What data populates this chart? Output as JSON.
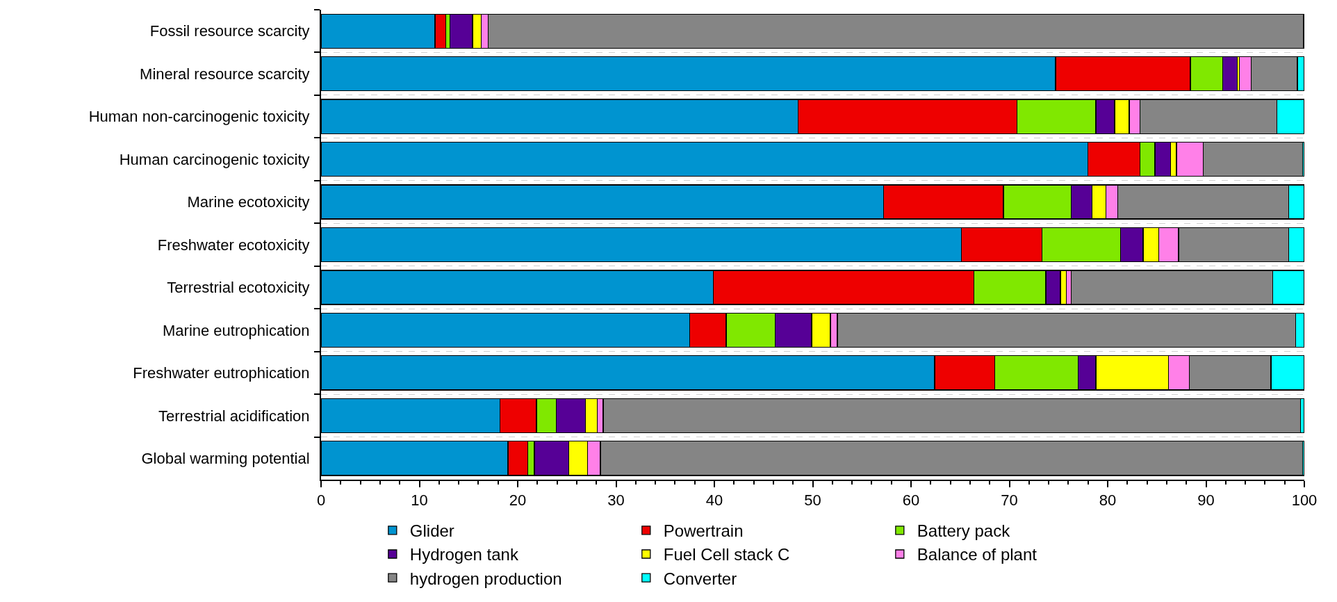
{
  "chart_data": {
    "type": "bar",
    "orientation": "horizontal",
    "stacked": true,
    "categories": [
      "Fossil resource scarcity",
      "Mineral resource scarcity",
      "Human non-carcinogenic toxicity",
      "Human carcinogenic toxicity",
      "Marine ecotoxicity",
      "Freshwater ecotoxicity",
      "Terrestrial ecotoxicity",
      "Marine eutrophication",
      "Freshwater eutrophication",
      "Terrestrial acidification",
      "Global warming potential"
    ],
    "series": [
      {
        "name": "Glider",
        "color": "#0094d0",
        "values": [
          11.6,
          74.7,
          48.5,
          78.0,
          57.2,
          65.1,
          39.9,
          37.5,
          62.4,
          18.2,
          19.0
        ]
      },
      {
        "name": "Powertrain",
        "color": "#ee0000",
        "values": [
          1.1,
          13.7,
          22.3,
          5.3,
          12.2,
          8.2,
          26.5,
          3.7,
          6.1,
          3.7,
          2.0
        ]
      },
      {
        "name": "Battery pack",
        "color": "#80e800",
        "values": [
          0.4,
          3.3,
          8.0,
          1.5,
          6.9,
          8.0,
          7.3,
          5.0,
          8.5,
          2.0,
          0.7
        ]
      },
      {
        "name": "Hydrogen tank",
        "color": "#560096",
        "values": [
          2.3,
          1.5,
          1.9,
          1.6,
          2.1,
          2.3,
          1.5,
          3.7,
          1.8,
          3.0,
          3.5
        ]
      },
      {
        "name": "Fuel Cell stack C",
        "color": "#ffff00",
        "values": [
          0.9,
          0.2,
          1.5,
          0.6,
          1.4,
          1.6,
          0.6,
          1.9,
          7.4,
          1.2,
          1.9
        ]
      },
      {
        "name": "Balance of plant",
        "color": "#ff80e8",
        "values": [
          0.7,
          1.2,
          1.1,
          2.7,
          1.2,
          2.0,
          0.5,
          0.7,
          2.1,
          0.6,
          1.3
        ]
      },
      {
        "name": "hydrogen production",
        "color": "#858585",
        "values": [
          82.9,
          4.7,
          13.9,
          10.1,
          17.4,
          11.2,
          20.5,
          46.6,
          8.3,
          70.9,
          71.4
        ]
      },
      {
        "name": "Converter",
        "color": "#00ffff",
        "values": [
          0.1,
          0.7,
          2.8,
          0.2,
          1.6,
          1.6,
          3.2,
          0.9,
          3.4,
          0.4,
          0.2
        ]
      }
    ],
    "xlim": [
      0,
      100
    ],
    "xticks": [
      0,
      10,
      20,
      30,
      40,
      50,
      60,
      70,
      80,
      90,
      100
    ],
    "grid": "y",
    "legend": "bottom"
  }
}
